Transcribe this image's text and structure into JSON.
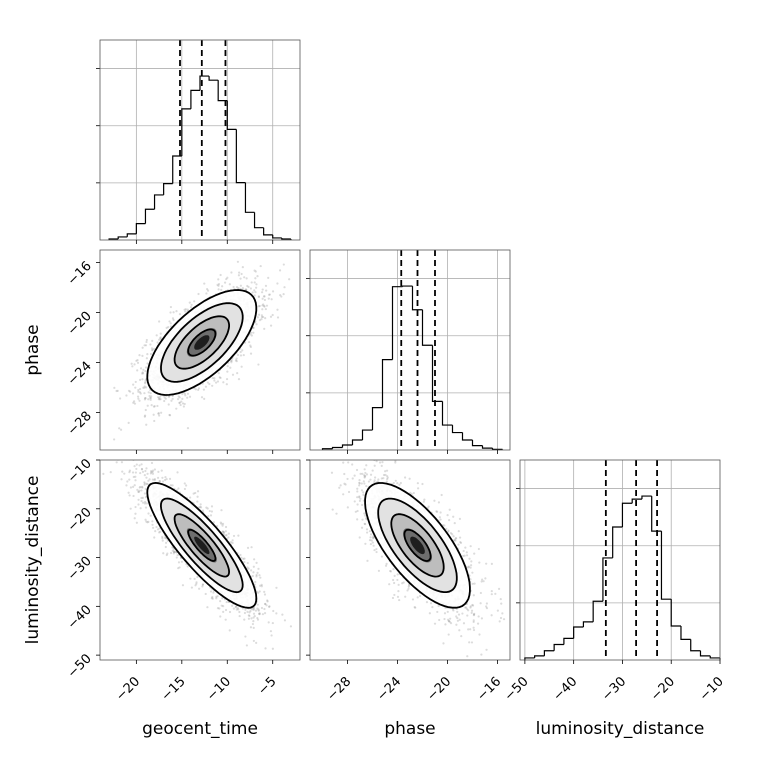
{
  "chart_data": {
    "type": "corner",
    "parameters": [
      {
        "name": "geocent_time",
        "xlabel": "geocent_time",
        "range": [
          -24,
          -2
        ],
        "ticks": [
          -20,
          -15,
          -10,
          -5
        ],
        "tick_labels": [
          "−20",
          "−15",
          "−10",
          "−5"
        ],
        "quantiles": [
          -15.2,
          -12.8,
          -10.2
        ]
      },
      {
        "name": "phase",
        "xlabel": "phase",
        "ylabel": "phase",
        "range": [
          -31,
          -15
        ],
        "ticks": [
          -28,
          -24,
          -20,
          -16
        ],
        "tick_labels": [
          "−28",
          "−24",
          "−20",
          "−16"
        ],
        "quantiles": [
          -23.7,
          -22.4,
          -21.0
        ]
      },
      {
        "name": "luminosity_distance",
        "xlabel": "luminosity_distance",
        "ylabel": "luminosity_distance",
        "range": [
          -51,
          -10
        ],
        "ticks": [
          -50,
          -40,
          -30,
          -20,
          -10
        ],
        "tick_labels": [
          "−50",
          "−40",
          "−30",
          "−20",
          "−10"
        ],
        "quantiles": [
          -33.4,
          -27.2,
          -22.9
        ]
      }
    ],
    "histograms": [
      {
        "param": "geocent_time",
        "bins": [
          -23.0,
          -22.0,
          -21.0,
          -20.0,
          -19.0,
          -18.0,
          -17.0,
          -16.0,
          -15.0,
          -14.0,
          -13.0,
          -12.0,
          -11.0,
          -10.0,
          -9.0,
          -8.0,
          -7.0,
          -6.0,
          -5.0,
          -4.0,
          -3.0
        ],
        "counts": [
          0.01,
          0.03,
          0.06,
          0.16,
          0.3,
          0.44,
          0.55,
          0.82,
          1.28,
          1.46,
          1.6,
          1.56,
          1.36,
          1.08,
          0.56,
          0.27,
          0.12,
          0.05,
          0.02,
          0.01
        ]
      },
      {
        "param": "phase",
        "bins": [
          -30.0,
          -29.2,
          -28.4,
          -27.6,
          -26.8,
          -26.0,
          -25.2,
          -24.4,
          -23.6,
          -22.8,
          -22.0,
          -21.2,
          -20.4,
          -19.6,
          -18.8,
          -18.0,
          -17.2,
          -16.4,
          -15.6
        ],
        "counts": [
          0.02,
          0.04,
          0.08,
          0.16,
          0.32,
          0.68,
          1.45,
          2.62,
          2.63,
          2.25,
          1.68,
          0.78,
          0.4,
          0.28,
          0.16,
          0.07,
          0.03,
          0.01
        ]
      },
      {
        "param": "luminosity_distance",
        "bins": [
          -50.0,
          -48.0,
          -46.0,
          -44.0,
          -42.0,
          -40.0,
          -38.0,
          -36.0,
          -34.0,
          -32.0,
          -30.0,
          -28.0,
          -26.0,
          -24.0,
          -22.0,
          -20.0,
          -18.0,
          -16.0,
          -14.0,
          -12.0,
          -10.0
        ],
        "counts": [
          0.02,
          0.04,
          0.09,
          0.15,
          0.21,
          0.32,
          0.37,
          0.57,
          0.99,
          1.29,
          1.52,
          1.56,
          1.59,
          1.25,
          0.59,
          0.33,
          0.2,
          0.09,
          0.04,
          0.02
        ]
      }
    ],
    "pairs": [
      {
        "x": "geocent_time",
        "y": "phase",
        "mean": [
          -12.8,
          -22.4
        ],
        "sd": [
          3.0,
          2.1
        ],
        "corr": 0.65
      },
      {
        "x": "geocent_time",
        "y": "luminosity_distance",
        "mean": [
          -12.8,
          -27.5
        ],
        "sd": [
          3.0,
          6.4
        ],
        "corr": -0.85
      },
      {
        "x": "phase",
        "y": "luminosity_distance",
        "mean": [
          -22.4,
          -27.5
        ],
        "sd": [
          2.1,
          6.4
        ],
        "corr": -0.7
      }
    ],
    "grid": true,
    "legend": "none"
  }
}
